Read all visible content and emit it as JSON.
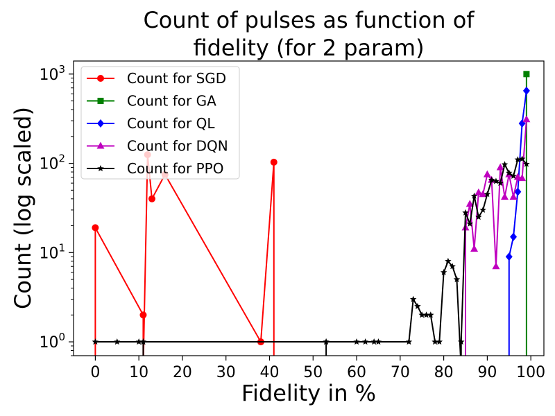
{
  "chart_data": {
    "type": "line",
    "title_lines": [
      "Count of pulses as function of",
      "fidelity (for 2 param)"
    ],
    "xlabel": "Fidelity in %",
    "ylabel": "Count (log scaled)",
    "yscale": "log",
    "xlim": [
      -5,
      103
    ],
    "ylim": [
      0.7,
      1400
    ],
    "xticks": [
      0,
      10,
      20,
      30,
      40,
      50,
      60,
      70,
      80,
      90,
      100
    ],
    "yticks": [
      {
        "value": 1,
        "base": "10",
        "exp": "0"
      },
      {
        "value": 10,
        "base": "10",
        "exp": "1"
      },
      {
        "value": 100,
        "base": "10",
        "exp": "2"
      },
      {
        "value": 1000,
        "base": "10",
        "exp": "3"
      }
    ],
    "legend_location": "upper-left",
    "series": [
      {
        "name": "Count for SGD",
        "color": "#ff0000",
        "marker": "circle",
        "points": [
          [
            0,
            0.5
          ],
          [
            0,
            19
          ],
          [
            11,
            2
          ],
          [
            11,
            0.5
          ],
          [
            12,
            125
          ],
          [
            13,
            40
          ],
          [
            16,
            75
          ],
          [
            38,
            1
          ],
          [
            41,
            103
          ],
          [
            41,
            0.5
          ]
        ]
      },
      {
        "name": "Count for GA",
        "color": "#008000",
        "marker": "square",
        "points": [
          [
            99,
            0.5
          ],
          [
            99,
            1000
          ]
        ]
      },
      {
        "name": "Count for QL",
        "color": "#0000ff",
        "marker": "diamond",
        "points": [
          [
            95,
            0.5
          ],
          [
            95,
            9
          ],
          [
            96,
            15
          ],
          [
            97,
            48
          ],
          [
            98,
            280
          ],
          [
            99,
            650
          ]
        ]
      },
      {
        "name": "Count for DQN",
        "color": "#bf00bf",
        "marker": "triangle",
        "points": [
          [
            85,
            0.5
          ],
          [
            85,
            19
          ],
          [
            86,
            35
          ],
          [
            87,
            11
          ],
          [
            88,
            47
          ],
          [
            89,
            45
          ],
          [
            90,
            75
          ],
          [
            91,
            65
          ],
          [
            92,
            7
          ],
          [
            93,
            90
          ],
          [
            94,
            42
          ],
          [
            95,
            75
          ],
          [
            96,
            42
          ],
          [
            97,
            70
          ],
          [
            98,
            68
          ],
          [
            99,
            310
          ]
        ]
      },
      {
        "name": "Count for PPO",
        "color": "#000000",
        "marker": "star",
        "points": [
          [
            0,
            1
          ],
          [
            5,
            1
          ],
          [
            10,
            1
          ],
          [
            11,
            1
          ],
          [
            11,
            0.5
          ],
          [
            11,
            1
          ],
          [
            53,
            1
          ],
          [
            53,
            0.5
          ],
          [
            53,
            1
          ],
          [
            60,
            1
          ],
          [
            62,
            1
          ],
          [
            64,
            1
          ],
          [
            65,
            1
          ],
          [
            72,
            1
          ],
          [
            73,
            3
          ],
          [
            74,
            2.5
          ],
          [
            75,
            2
          ],
          [
            76,
            2
          ],
          [
            77,
            2
          ],
          [
            78,
            1
          ],
          [
            79,
            1
          ],
          [
            80,
            6
          ],
          [
            81,
            8
          ],
          [
            82,
            7
          ],
          [
            83,
            5
          ],
          [
            84,
            0.5
          ],
          [
            84,
            1
          ],
          [
            85,
            28
          ],
          [
            86,
            21
          ],
          [
            87,
            43
          ],
          [
            88,
            25
          ],
          [
            89,
            30
          ],
          [
            90,
            45
          ],
          [
            91,
            65
          ],
          [
            92,
            63
          ],
          [
            93,
            60
          ],
          [
            94,
            97
          ],
          [
            95,
            78
          ],
          [
            96,
            72
          ],
          [
            97,
            110
          ],
          [
            98,
            112
          ],
          [
            99,
            98
          ]
        ]
      }
    ]
  }
}
